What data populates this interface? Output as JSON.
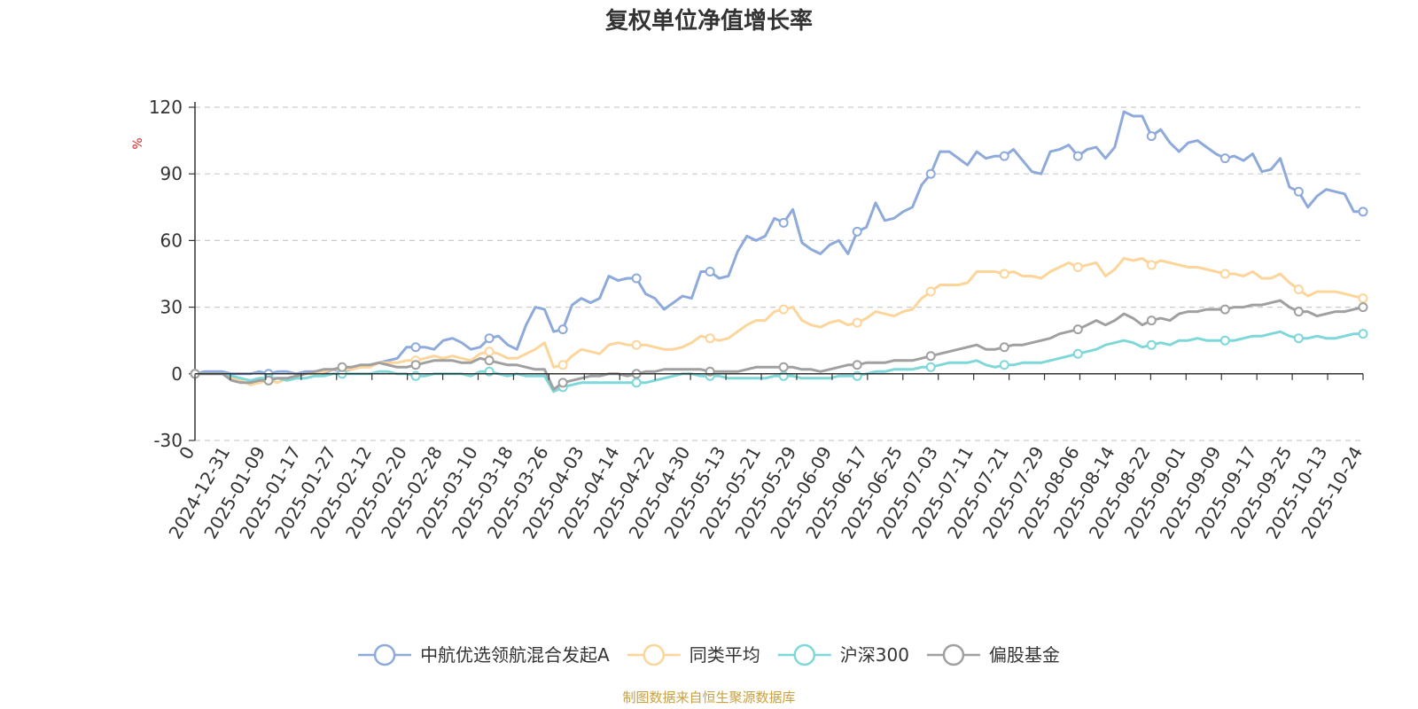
{
  "chart_data": {
    "type": "line",
    "title": "复权单位净值增长率",
    "ylabel": "%",
    "xlabel": "",
    "ylim": [
      -30,
      120
    ],
    "y_ticks": [
      -30,
      0,
      30,
      60,
      90,
      120
    ],
    "x_tick_labels": [
      "0",
      "2024-12-31",
      "2025-01-09",
      "2025-01-17",
      "2025-01-27",
      "2025-02-12",
      "2025-02-20",
      "2025-02-28",
      "2025-03-10",
      "2025-03-18",
      "2025-03-26",
      "2025-04-03",
      "2025-04-14",
      "2025-04-22",
      "2025-04-30",
      "2025-05-13",
      "2025-05-21",
      "2025-05-29",
      "2025-06-09",
      "2025-06-17",
      "2025-06-25",
      "2025-07-03",
      "2025-07-11",
      "2025-07-21",
      "2025-07-29",
      "2025-08-06",
      "2025-08-14",
      "2025-08-22",
      "2025-09-01",
      "2025-09-09",
      "2025-09-17",
      "2025-09-25",
      "2025-10-13",
      "2025-10-24"
    ],
    "grid": true,
    "legend_position": "bottom-center",
    "source": "制图数据来自恒生聚源数据库",
    "series": [
      {
        "name": "中航优选领航混合发起A",
        "color": "#8eaadb",
        "values": [
          0,
          1,
          1,
          1,
          0,
          0,
          0,
          1,
          0,
          1,
          1,
          0,
          1,
          1,
          0,
          2,
          1,
          2,
          3,
          4,
          5,
          6,
          7,
          12,
          12,
          12,
          11,
          15,
          16,
          14,
          11,
          12,
          16,
          17,
          13,
          11,
          22,
          30,
          29,
          19,
          20,
          31,
          34,
          32,
          34,
          44,
          42,
          43,
          43,
          36,
          34,
          29,
          32,
          35,
          34,
          46,
          46,
          43,
          44,
          55,
          62,
          60,
          62,
          70,
          68,
          74,
          59,
          56,
          54,
          58,
          60,
          54,
          64,
          66,
          77,
          69,
          70,
          73,
          75,
          85,
          90,
          100,
          100,
          97,
          94,
          100,
          97,
          98,
          98,
          101,
          96,
          91,
          90,
          100,
          101,
          103,
          98,
          101,
          102,
          97,
          102,
          118,
          116,
          116,
          107,
          110,
          104,
          100,
          104,
          105,
          102,
          99,
          97,
          98,
          96,
          99,
          91,
          92,
          97,
          84,
          82,
          75,
          80,
          83,
          82,
          81,
          73,
          73
        ]
      },
      {
        "name": "同类平均",
        "color": "#fcd59a",
        "values": [
          0,
          0,
          0,
          0,
          -2,
          -3,
          -5,
          -4,
          -3,
          -4,
          -2,
          -1,
          0,
          0,
          1,
          2,
          2,
          2,
          3,
          3,
          5,
          5,
          5,
          6,
          6,
          7,
          8,
          7,
          8,
          7,
          6,
          9,
          10,
          9,
          7,
          7,
          9,
          11,
          14,
          3,
          4,
          8,
          11,
          10,
          9,
          13,
          14,
          13,
          13,
          13,
          12,
          11,
          11,
          12,
          14,
          17,
          16,
          15,
          16,
          19,
          22,
          24,
          24,
          28,
          29,
          30,
          24,
          22,
          21,
          23,
          24,
          22,
          23,
          25,
          28,
          27,
          26,
          28,
          29,
          34,
          37,
          40,
          40,
          40,
          41,
          46,
          46,
          46,
          45,
          46,
          44,
          44,
          43,
          46,
          48,
          50,
          48,
          49,
          50,
          44,
          47,
          52,
          51,
          52,
          49,
          51,
          50,
          49,
          48,
          48,
          47,
          46,
          45,
          45,
          44,
          46,
          43,
          43,
          45,
          41,
          38,
          35,
          37,
          37,
          37,
          36,
          35,
          34
        ]
      },
      {
        "name": "沪深300",
        "color": "#7fd8d8",
        "values": [
          0,
          0,
          0,
          0,
          -1,
          -2,
          -3,
          -2,
          -2,
          -2,
          -3,
          -2,
          -2,
          -1,
          -1,
          0,
          0,
          0,
          0,
          0,
          1,
          1,
          0,
          0,
          -1,
          -1,
          0,
          0,
          0,
          0,
          -1,
          1,
          1,
          0,
          -1,
          0,
          -1,
          -1,
          -1,
          -8,
          -6,
          -5,
          -4,
          -4,
          -4,
          -4,
          -4,
          -4,
          -4,
          -4,
          -3,
          -2,
          -1,
          0,
          0,
          -1,
          -1,
          -1,
          -2,
          -2,
          -2,
          -2,
          -2,
          -1,
          -1,
          -1,
          -2,
          -2,
          -2,
          -2,
          -1,
          -1,
          -1,
          0,
          1,
          1,
          2,
          2,
          2,
          3,
          3,
          4,
          5,
          5,
          5,
          6,
          4,
          3,
          4,
          4,
          5,
          5,
          5,
          6,
          7,
          8,
          9,
          10,
          11,
          13,
          14,
          15,
          14,
          12,
          13,
          14,
          13,
          15,
          15,
          16,
          15,
          15,
          15,
          15,
          16,
          17,
          17,
          18,
          19,
          17,
          16,
          16,
          17,
          16,
          16,
          17,
          18,
          18
        ]
      },
      {
        "name": "偏股基金",
        "color": "#a0a0a0",
        "values": [
          0,
          0,
          0,
          0,
          -3,
          -4,
          -4,
          -3,
          -3,
          -2,
          -2,
          -1,
          0,
          1,
          2,
          2,
          3,
          3,
          4,
          4,
          5,
          4,
          3,
          3,
          4,
          5,
          6,
          6,
          6,
          5,
          5,
          7,
          6,
          5,
          4,
          4,
          3,
          2,
          2,
          -7,
          -4,
          -3,
          -2,
          -1,
          -1,
          0,
          0,
          -1,
          0,
          1,
          1,
          2,
          2,
          2,
          2,
          2,
          1,
          1,
          1,
          1,
          2,
          3,
          3,
          3,
          3,
          3,
          2,
          2,
          1,
          2,
          3,
          4,
          4,
          5,
          5,
          5,
          6,
          6,
          6,
          7,
          8,
          9,
          10,
          11,
          12,
          13,
          11,
          11,
          12,
          13,
          13,
          14,
          15,
          16,
          18,
          19,
          20,
          22,
          24,
          22,
          24,
          27,
          25,
          22,
          24,
          25,
          24,
          27,
          28,
          28,
          29,
          29,
          29,
          30,
          30,
          31,
          31,
          32,
          33,
          30,
          28,
          28,
          26,
          27,
          28,
          28,
          29,
          30
        ]
      }
    ]
  }
}
